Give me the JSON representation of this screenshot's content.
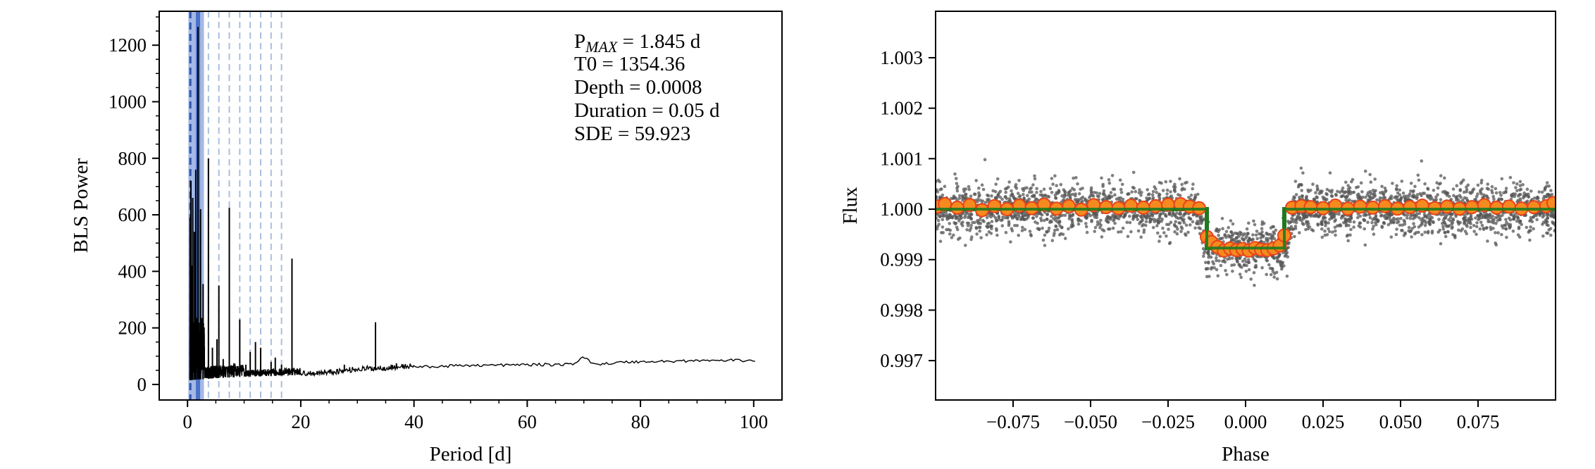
{
  "chart_data": [
    {
      "type": "line",
      "panel": "periodogram",
      "xlabel": "Period [d]",
      "ylabel": "BLS Power",
      "xlim": [
        -5,
        105
      ],
      "ylim": [
        -55,
        1320
      ],
      "xticks": [
        0,
        20,
        40,
        60,
        80,
        100
      ],
      "xtick_labels": [
        "0",
        "20",
        "40",
        "60",
        "80",
        "100"
      ],
      "yticks": [
        0,
        200,
        400,
        600,
        800,
        1000,
        1200
      ],
      "ytick_labels": [
        "0",
        "200",
        "400",
        "600",
        "800",
        "1000",
        "1200"
      ],
      "grid": false,
      "peak_period": 1.845,
      "peak_band_color": "#4a72c9",
      "harmonic_lines": [
        3.69,
        5.535,
        7.38,
        9.225,
        11.07,
        12.915,
        14.76,
        16.605
      ],
      "harmonic_line_color": "#a9bfdc",
      "line_color": "#000000",
      "spikes": [
        {
          "x": 0.45,
          "y": 590
        },
        {
          "x": 0.6,
          "y": 720
        },
        {
          "x": 0.75,
          "y": 420
        },
        {
          "x": 0.92,
          "y": 660
        },
        {
          "x": 1.2,
          "y": 540
        },
        {
          "x": 1.45,
          "y": 760
        },
        {
          "x": 1.845,
          "y": 1265
        },
        {
          "x": 2.3,
          "y": 620
        },
        {
          "x": 2.75,
          "y": 355
        },
        {
          "x": 3.69,
          "y": 800
        },
        {
          "x": 4.4,
          "y": 130
        },
        {
          "x": 5.2,
          "y": 160
        },
        {
          "x": 5.535,
          "y": 350
        },
        {
          "x": 6.3,
          "y": 90
        },
        {
          "x": 7.38,
          "y": 625
        },
        {
          "x": 8.2,
          "y": 75
        },
        {
          "x": 9.225,
          "y": 230
        },
        {
          "x": 10.3,
          "y": 70
        },
        {
          "x": 11.07,
          "y": 115
        },
        {
          "x": 12.0,
          "y": 150
        },
        {
          "x": 12.915,
          "y": 130
        },
        {
          "x": 14.76,
          "y": 80
        },
        {
          "x": 15.5,
          "y": 95
        },
        {
          "x": 16.605,
          "y": 70
        },
        {
          "x": 18.45,
          "y": 445
        },
        {
          "x": 27.7,
          "y": 70
        },
        {
          "x": 33.2,
          "y": 220
        },
        {
          "x": 36.9,
          "y": 75
        }
      ],
      "baseline": [
        {
          "x": 0.4,
          "y": 15
        },
        {
          "x": 5,
          "y": 22
        },
        {
          "x": 10,
          "y": 27
        },
        {
          "x": 15,
          "y": 30
        },
        {
          "x": 20,
          "y": 34
        },
        {
          "x": 25,
          "y": 40
        },
        {
          "x": 30,
          "y": 50
        },
        {
          "x": 35,
          "y": 55
        },
        {
          "x": 40,
          "y": 62
        },
        {
          "x": 45,
          "y": 64
        },
        {
          "x": 50,
          "y": 68
        },
        {
          "x": 55,
          "y": 68
        },
        {
          "x": 60,
          "y": 70
        },
        {
          "x": 65,
          "y": 70
        },
        {
          "x": 68,
          "y": 72
        },
        {
          "x": 70,
          "y": 95
        },
        {
          "x": 72,
          "y": 72
        },
        {
          "x": 75,
          "y": 75
        },
        {
          "x": 78,
          "y": 80
        },
        {
          "x": 80,
          "y": 80
        },
        {
          "x": 85,
          "y": 82
        },
        {
          "x": 90,
          "y": 84
        },
        {
          "x": 95,
          "y": 85
        },
        {
          "x": 100.5,
          "y": 85
        }
      ],
      "annotations": {
        "pmax_prefix": "P",
        "pmax_sub": "MAX",
        "pmax_value": " = 1.845 d",
        "t0": "T0 = 1354.36",
        "depth": "Depth = 0.0008",
        "duration": "Duration = 0.05 d",
        "sde": "SDE = 59.923"
      }
    },
    {
      "type": "scatter",
      "panel": "phase-folded",
      "xlabel": "Phase",
      "ylabel": "Flux",
      "xlim": [
        -0.1,
        0.1
      ],
      "ylim": [
        0.99622,
        1.00392
      ],
      "xticks": [
        -0.075,
        -0.05,
        -0.025,
        0.0,
        0.025,
        0.05,
        0.075
      ],
      "xtick_labels": [
        "−0.075",
        "−0.050",
        "−0.025",
        "0.000",
        "0.025",
        "0.050",
        "0.075"
      ],
      "yticks": [
        0.997,
        0.998,
        0.999,
        1.0,
        1.001,
        1.002,
        1.003
      ],
      "ytick_labels": [
        "0.997",
        "0.998",
        "0.999",
        "1.000",
        "1.001",
        "1.002",
        "1.003"
      ],
      "grid": false,
      "points_color": "#555555",
      "points_count": 3200,
      "out_of_transit_flux": 1.0,
      "in_transit_flux": 0.99923,
      "flux_scatter_sigma": 0.00025,
      "binned_color": "#f58a1f",
      "binned_edge_color": "#e8431a",
      "binned": [
        {
          "x": -0.0995,
          "y": 1.00005
        },
        {
          "x": -0.097,
          "y": 1.0001
        },
        {
          "x": -0.093,
          "y": 1.00003
        },
        {
          "x": -0.089,
          "y": 1.00008
        },
        {
          "x": -0.085,
          "y": 0.99998
        },
        {
          "x": -0.081,
          "y": 1.00006
        },
        {
          "x": -0.077,
          "y": 1.0
        },
        {
          "x": -0.073,
          "y": 1.00007
        },
        {
          "x": -0.069,
          "y": 1.00002
        },
        {
          "x": -0.065,
          "y": 1.00009
        },
        {
          "x": -0.061,
          "y": 1.00001
        },
        {
          "x": -0.057,
          "y": 1.00006
        },
        {
          "x": -0.053,
          "y": 0.99999
        },
        {
          "x": -0.049,
          "y": 1.00008
        },
        {
          "x": -0.045,
          "y": 1.00004
        },
        {
          "x": -0.041,
          "y": 1.00002
        },
        {
          "x": -0.037,
          "y": 1.00007
        },
        {
          "x": -0.033,
          "y": 1.00003
        },
        {
          "x": -0.029,
          "y": 1.00006
        },
        {
          "x": -0.025,
          "y": 1.00009
        },
        {
          "x": -0.021,
          "y": 1.0001
        },
        {
          "x": -0.018,
          "y": 1.00005
        },
        {
          "x": -0.015,
          "y": 1.00002
        },
        {
          "x": -0.0125,
          "y": 0.99945
        },
        {
          "x": -0.011,
          "y": 0.99935
        },
        {
          "x": -0.009,
          "y": 0.99925
        },
        {
          "x": -0.007,
          "y": 0.99918
        },
        {
          "x": -0.005,
          "y": 0.99922
        },
        {
          "x": -0.003,
          "y": 0.99919
        },
        {
          "x": -0.001,
          "y": 0.99921
        },
        {
          "x": 0.001,
          "y": 0.99918
        },
        {
          "x": 0.003,
          "y": 0.99923
        },
        {
          "x": 0.005,
          "y": 0.9992
        },
        {
          "x": 0.007,
          "y": 0.99919
        },
        {
          "x": 0.009,
          "y": 0.99922
        },
        {
          "x": 0.011,
          "y": 0.99928
        },
        {
          "x": 0.0125,
          "y": 0.99948
        },
        {
          "x": 0.015,
          "y": 1.00003
        },
        {
          "x": 0.018,
          "y": 1.00006
        },
        {
          "x": 0.021,
          "y": 1.00004
        },
        {
          "x": 0.025,
          "y": 1.00002
        },
        {
          "x": 0.029,
          "y": 1.00007
        },
        {
          "x": 0.033,
          "y": 1.00001
        },
        {
          "x": 0.037,
          "y": 1.00005
        },
        {
          "x": 0.041,
          "y": 1.00003
        },
        {
          "x": 0.045,
          "y": 1.00006
        },
        {
          "x": 0.049,
          "y": 1.00001
        },
        {
          "x": 0.053,
          "y": 1.00004
        },
        {
          "x": 0.057,
          "y": 1.00007
        },
        {
          "x": 0.061,
          "y": 1.00002
        },
        {
          "x": 0.065,
          "y": 1.00005
        },
        {
          "x": 0.069,
          "y": 1.00001
        },
        {
          "x": 0.073,
          "y": 1.00004
        },
        {
          "x": 0.077,
          "y": 1.00008
        },
        {
          "x": 0.081,
          "y": 1.00003
        },
        {
          "x": 0.085,
          "y": 1.00005
        },
        {
          "x": 0.089,
          "y": 1.00001
        },
        {
          "x": 0.093,
          "y": 1.00004
        },
        {
          "x": 0.097,
          "y": 1.00006
        },
        {
          "x": 0.0993,
          "y": 1.00012
        }
      ],
      "model_color": "#1f7a1f",
      "model": [
        {
          "x": -0.1,
          "y": 1.0
        },
        {
          "x": -0.0125,
          "y": 1.0
        },
        {
          "x": -0.0125,
          "y": 0.99923
        },
        {
          "x": 0.0125,
          "y": 0.99923
        },
        {
          "x": 0.0125,
          "y": 1.0
        },
        {
          "x": 0.1,
          "y": 1.0
        }
      ]
    }
  ]
}
